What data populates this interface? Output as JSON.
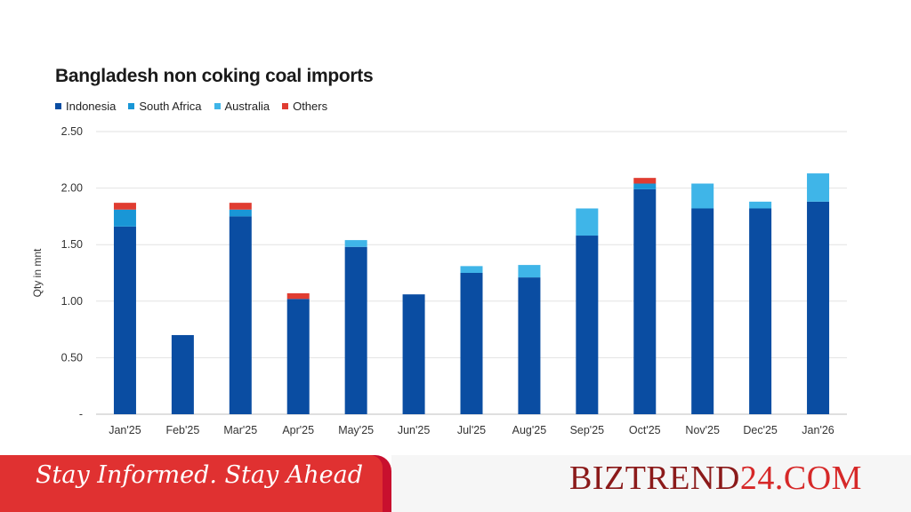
{
  "chart_data": {
    "type": "bar",
    "stacked": true,
    "title": "Bangladesh non coking coal imports",
    "ylabel": "Qty in mnt",
    "ylim": [
      0,
      2.5
    ],
    "yticks": [
      "-",
      "0.50",
      "1.00",
      "1.50",
      "2.00",
      "2.50"
    ],
    "grid": true,
    "legend_position": "top-left",
    "categories": [
      "Jan'25",
      "Feb'25",
      "Mar'25",
      "Apr'25",
      "May'25",
      "Jun'25",
      "Jul'25",
      "Aug'25",
      "Sep'25",
      "Oct'25",
      "Nov'25",
      "Dec'25",
      "Jan'26"
    ],
    "series": [
      {
        "name": "Indonesia",
        "color": "#0a4da2",
        "values": [
          1.66,
          0.7,
          1.75,
          1.02,
          1.48,
          1.06,
          1.25,
          1.21,
          1.58,
          1.99,
          1.82,
          1.82,
          1.88
        ]
      },
      {
        "name": "South Africa",
        "color": "#1996d6",
        "values": [
          0.15,
          0,
          0.06,
          0,
          0,
          0,
          0,
          0,
          0,
          0.05,
          0,
          0,
          0
        ]
      },
      {
        "name": "Australia",
        "color": "#3fb5e8",
        "values": [
          0,
          0,
          0,
          0,
          0.06,
          0,
          0.06,
          0.11,
          0.24,
          0,
          0.22,
          0.06,
          0.25
        ]
      },
      {
        "name": "Others",
        "color": "#e03c31",
        "values": [
          0.06,
          0,
          0.06,
          0.05,
          0,
          0,
          0,
          0,
          0,
          0.05,
          0,
          0,
          0
        ]
      }
    ]
  },
  "footer": {
    "tagline": "Stay Informed. Stay Ahead",
    "brand_part1": "BIZTREND",
    "brand_part2": "24.COM"
  }
}
